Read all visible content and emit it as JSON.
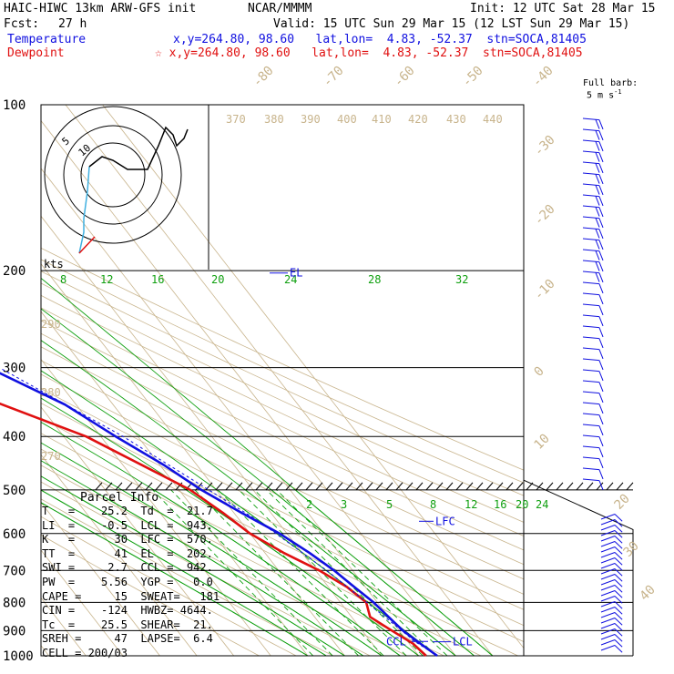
{
  "header": {
    "model": "HAIC-HIWC 13km ARW-GFS init",
    "org": "NCAR/MMMM",
    "init": "Init: 12 UTC Sat 28 Mar 15",
    "fcst_label": "Fcst:",
    "fcst_value": "27 h",
    "valid": "Valid: 15 UTC Sun 29 Mar 15 (12 LST Sun 29 Mar 15)",
    "temp_label": "Temperature",
    "temp_loc": "x,y=264.80, 98.60   lat,lon=  4.83, -52.37  stn=SOCA,81405",
    "dew_label": "Dewpoint",
    "dew_loc": "☆ x,y=264.80, 98.60   lat,lon=  4.83, -52.37  stn=SOCA,81405"
  },
  "barb_legend": {
    "title": "Full barb:",
    "value": "5 m s",
    "exp": "-1"
  },
  "hodo": {
    "units": "kts",
    "ring_labels": [
      "5",
      "10"
    ]
  },
  "parcel": {
    "title": "Parcel Info",
    "rows": [
      [
        "T   =    25.2",
        "Td  =  21.7"
      ],
      [
        "LI  =    -0.5",
        "LCL =  943."
      ],
      [
        "K   =      30",
        "LFC =  570."
      ],
      [
        "TT  =      41",
        "EL  =  202."
      ],
      [
        "SWI =     2.7",
        "CCL =  942."
      ],
      [
        "PW  =    5.56",
        "YGP =   0.0"
      ],
      [
        "CAPE =     15",
        "SWEAT=   181"
      ],
      [
        "CIN =    -124",
        "HWBZ= 4644."
      ],
      [
        "Tc  =    25.5",
        "SHEAR=  21."
      ],
      [
        "SREH =     47",
        "LAPSE=  6.4"
      ],
      [
        "CELL = 200/03",
        ""
      ]
    ]
  },
  "markers": {
    "el": "EL",
    "lfc": "LFC",
    "lcl": "LCL",
    "ccl": "CCL"
  },
  "colors": {
    "temperature": "#1010e0",
    "dewpoint": "#e01010",
    "isotherm": "#c8b48c",
    "mixing": "#10a010",
    "grid": "#000000"
  },
  "chart_data": {
    "type": "line",
    "diagram": "skew-T log-p",
    "y_axis": {
      "pressure_levels_hPa": [
        "100",
        "200",
        "300",
        "400",
        "500",
        "600",
        "700",
        "800",
        "900",
        "1000"
      ],
      "ylim": [
        1000,
        100
      ]
    },
    "isotherm_labels_C": [
      "-80",
      "-70",
      "-60",
      "-50",
      "-40",
      "-30",
      "-20",
      "-10",
      "0",
      "10",
      "20",
      "30",
      "40"
    ],
    "theta_labels_K": [
      "370",
      "380",
      "390",
      "400",
      "410",
      "420",
      "430",
      "440",
      "290",
      "280",
      "270"
    ],
    "mixing_ratio_labels_upper": [
      "8",
      "12",
      "16",
      "20",
      "24",
      "28",
      "32"
    ],
    "mixing_ratio_labels_lower": [
      "2",
      "3",
      "5",
      "8",
      "12",
      "16",
      "20",
      "24"
    ],
    "series": [
      {
        "name": "Temperature",
        "points": [
          [
            100,
            -79
          ],
          [
            110,
            -78
          ],
          [
            130,
            -75
          ],
          [
            150,
            -71
          ],
          [
            170,
            -66
          ],
          [
            190,
            -61
          ],
          [
            200,
            -59
          ],
          [
            220,
            -55
          ],
          [
            250,
            -48
          ],
          [
            280,
            -41
          ],
          [
            300,
            -36
          ],
          [
            350,
            -23
          ],
          [
            400,
            -16
          ],
          [
            450,
            -9
          ],
          [
            500,
            -4
          ],
          [
            550,
            2
          ],
          [
            600,
            8
          ],
          [
            650,
            12
          ],
          [
            700,
            15
          ],
          [
            750,
            17
          ],
          [
            800,
            19
          ],
          [
            850,
            20
          ],
          [
            900,
            21
          ],
          [
            950,
            23
          ],
          [
            1000,
            25
          ]
        ]
      },
      {
        "name": "Dewpoint",
        "points": [
          [
            100,
            -80
          ],
          [
            120,
            -83
          ],
          [
            150,
            -85
          ],
          [
            180,
            -78
          ],
          [
            200,
            -72
          ],
          [
            230,
            -74
          ],
          [
            260,
            -65
          ],
          [
            300,
            -57
          ],
          [
            330,
            -47
          ],
          [
            400,
            -24
          ],
          [
            450,
            -15
          ],
          [
            500,
            -7
          ],
          [
            550,
            -3
          ],
          [
            600,
            0
          ],
          [
            650,
            5
          ],
          [
            700,
            11
          ],
          [
            750,
            15
          ],
          [
            800,
            17
          ],
          [
            850,
            15
          ],
          [
            900,
            18
          ],
          [
            950,
            21
          ],
          [
            1000,
            22
          ]
        ]
      }
    ]
  }
}
